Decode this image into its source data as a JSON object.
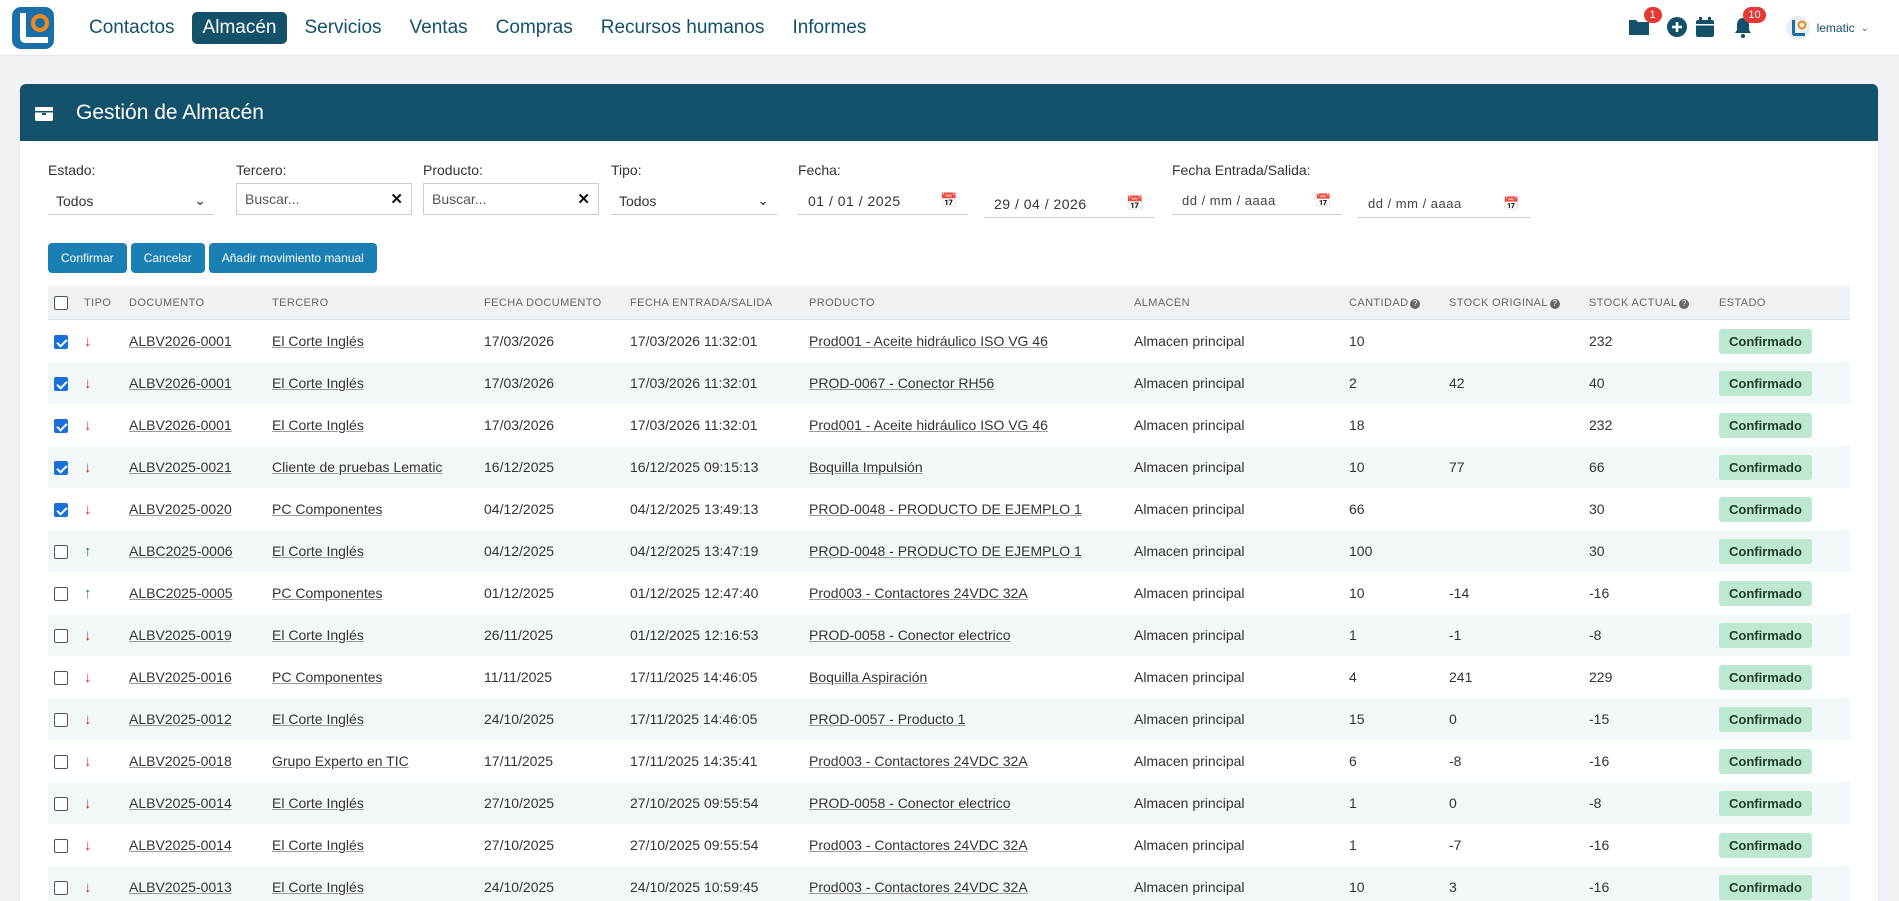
{
  "nav": {
    "items": [
      {
        "label": "Contactos",
        "active": false
      },
      {
        "label": "Almacén",
        "active": true
      },
      {
        "label": "Servicios",
        "active": false
      },
      {
        "label": "Ventas",
        "active": false
      },
      {
        "label": "Compras",
        "active": false
      },
      {
        "label": "Recursos humanos",
        "active": false
      },
      {
        "label": "Informes",
        "active": false
      }
    ],
    "folder_badge": "1",
    "bell_badge": "10",
    "user_name": "lematic",
    "colors": {
      "brand": "#13506a",
      "accent": "#1a80b4",
      "badge": "#e53935"
    }
  },
  "panel": {
    "title": "Gestión de Almacén"
  },
  "filters": {
    "estado": {
      "label": "Estado:",
      "value": "Todos"
    },
    "tercero": {
      "label": "Tercero:",
      "placeholder": "Buscar..."
    },
    "producto": {
      "label": "Producto:",
      "placeholder": "Buscar..."
    },
    "tipo": {
      "label": "Tipo:",
      "value": "Todos"
    },
    "fecha": {
      "label": "Fecha:",
      "from": "01 / 01 / 2025",
      "to": "29 / 04 / 2026"
    },
    "fecha_es": {
      "label": "Fecha Entrada/Salida:",
      "from": "dd / mm / aaaa",
      "to": "dd / mm / aaaa"
    }
  },
  "buttons": {
    "confirm": "Confirmar",
    "cancel": "Cancelar",
    "add": "Añadir movimiento manual"
  },
  "table": {
    "headers": [
      "TIPO",
      "DOCUMENTO",
      "TERCERO",
      "FECHA DOCUMENTO",
      "FECHA ENTRADA/SALIDA",
      "PRODUCTO",
      "ALMACÉN",
      "CANTIDAD",
      "STOCK ORIGINAL",
      "STOCK ACTUAL",
      "ESTADO"
    ],
    "rows": [
      {
        "checked": true,
        "dir": "down",
        "doc": "ALBV2026-0001",
        "tercero": "El Corte Inglés",
        "fdoc": "17/03/2026",
        "fes": "17/03/2026 11:32:01",
        "producto": "Prod001 - Aceite hidráulico ISO VG 46",
        "almacen": "Almacen principal",
        "cantidad": "10",
        "orig": "",
        "actual": "232",
        "estado": "Confirmado"
      },
      {
        "checked": true,
        "dir": "down",
        "doc": "ALBV2026-0001",
        "tercero": "El Corte Inglés",
        "fdoc": "17/03/2026",
        "fes": "17/03/2026 11:32:01",
        "producto": "PROD-0067 - Conector RH56",
        "almacen": "Almacen principal",
        "cantidad": "2",
        "orig": "42",
        "actual": "40",
        "estado": "Confirmado"
      },
      {
        "checked": true,
        "dir": "down",
        "doc": "ALBV2026-0001",
        "tercero": "El Corte Inglés",
        "fdoc": "17/03/2026",
        "fes": "17/03/2026 11:32:01",
        "producto": "Prod001 - Aceite hidráulico ISO VG 46",
        "almacen": "Almacen principal",
        "cantidad": "18",
        "orig": "",
        "actual": "232",
        "estado": "Confirmado"
      },
      {
        "checked": true,
        "dir": "down",
        "doc": "ALBV2025-0021",
        "tercero": "Cliente de pruebas Lematic",
        "fdoc": "16/12/2025",
        "fes": "16/12/2025 09:15:13",
        "producto": "Boquilla Impulsión",
        "almacen": "Almacen principal",
        "cantidad": "10",
        "orig": "77",
        "actual": "66",
        "estado": "Confirmado"
      },
      {
        "checked": true,
        "dir": "down",
        "doc": "ALBV2025-0020",
        "tercero": "PC Componentes",
        "fdoc": "04/12/2025",
        "fes": "04/12/2025 13:49:13",
        "producto": "PROD-0048 - PRODUCTO DE EJEMPLO 1",
        "almacen": "Almacen principal",
        "cantidad": "66",
        "orig": "",
        "actual": "30",
        "estado": "Confirmado"
      },
      {
        "checked": false,
        "dir": "up",
        "doc": "ALBC2025-0006",
        "tercero": "El Corte Inglés",
        "fdoc": "04/12/2025",
        "fes": "04/12/2025 13:47:19",
        "producto": "PROD-0048 - PRODUCTO DE EJEMPLO 1",
        "almacen": "Almacen principal",
        "cantidad": "100",
        "orig": "",
        "actual": "30",
        "estado": "Confirmado"
      },
      {
        "checked": false,
        "dir": "up",
        "doc": "ALBC2025-0005",
        "tercero": "PC Componentes",
        "fdoc": "01/12/2025",
        "fes": "01/12/2025 12:47:40",
        "producto": "Prod003 - Contactores 24VDC 32A",
        "almacen": "Almacen principal",
        "cantidad": "10",
        "orig": "-14",
        "actual": "-16",
        "estado": "Confirmado"
      },
      {
        "checked": false,
        "dir": "down",
        "doc": "ALBV2025-0019",
        "tercero": "El Corte Inglés",
        "fdoc": "26/11/2025",
        "fes": "01/12/2025 12:16:53",
        "producto": "PROD-0058 - Conector electrico",
        "almacen": "Almacen principal",
        "cantidad": "1",
        "orig": "-1",
        "actual": "-8",
        "estado": "Confirmado"
      },
      {
        "checked": false,
        "dir": "down",
        "doc": "ALBV2025-0016",
        "tercero": "PC Componentes",
        "fdoc": "11/11/2025",
        "fes": "17/11/2025 14:46:05",
        "producto": "Boquilla Aspiración",
        "almacen": "Almacen principal",
        "cantidad": "4",
        "orig": "241",
        "actual": "229",
        "estado": "Confirmado"
      },
      {
        "checked": false,
        "dir": "down",
        "doc": "ALBV2025-0012",
        "tercero": "El Corte Inglés",
        "fdoc": "24/10/2025",
        "fes": "17/11/2025 14:46:05",
        "producto": "PROD-0057 - Producto 1",
        "almacen": "Almacen principal",
        "cantidad": "15",
        "orig": "0",
        "actual": "-15",
        "estado": "Confirmado"
      },
      {
        "checked": false,
        "dir": "down",
        "doc": "ALBV2025-0018",
        "tercero": "Grupo Experto en TIC",
        "fdoc": "17/11/2025",
        "fes": "17/11/2025 14:35:41",
        "producto": "Prod003 - Contactores 24VDC 32A",
        "almacen": "Almacen principal",
        "cantidad": "6",
        "orig": "-8",
        "actual": "-16",
        "estado": "Confirmado"
      },
      {
        "checked": false,
        "dir": "down",
        "doc": "ALBV2025-0014",
        "tercero": "El Corte Inglés",
        "fdoc": "27/10/2025",
        "fes": "27/10/2025 09:55:54",
        "producto": "PROD-0058 - Conector electrico",
        "almacen": "Almacen principal",
        "cantidad": "1",
        "orig": "0",
        "actual": "-8",
        "estado": "Confirmado"
      },
      {
        "checked": false,
        "dir": "down",
        "doc": "ALBV2025-0014",
        "tercero": "El Corte Inglés",
        "fdoc": "27/10/2025",
        "fes": "27/10/2025 09:55:54",
        "producto": "Prod003 - Contactores 24VDC 32A",
        "almacen": "Almacen principal",
        "cantidad": "1",
        "orig": "-7",
        "actual": "-16",
        "estado": "Confirmado"
      },
      {
        "checked": false,
        "dir": "down",
        "doc": "ALBV2025-0013",
        "tercero": "El Corte Inglés",
        "fdoc": "24/10/2025",
        "fes": "24/10/2025 10:59:45",
        "producto": "Prod003 - Contactores 24VDC 32A",
        "almacen": "Almacen principal",
        "cantidad": "10",
        "orig": "3",
        "actual": "-16",
        "estado": "Confirmado"
      }
    ]
  }
}
